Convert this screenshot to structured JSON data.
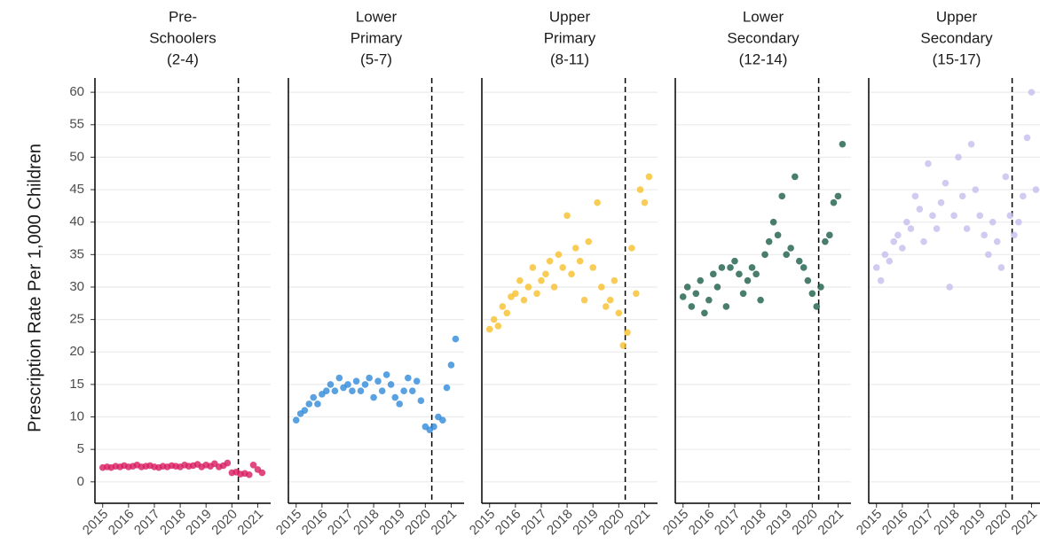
{
  "chart_data": [
    {
      "type": "scatter",
      "title": [
        "Pre-",
        "Schoolers",
        "(2-4)"
      ],
      "ylabel": "Prescription Rate Per 1,000 Children",
      "color": "#d81b60",
      "x": [
        2015,
        2015.17,
        2015.33,
        2015.5,
        2015.67,
        2015.83,
        2016,
        2016.17,
        2016.33,
        2016.5,
        2016.67,
        2016.83,
        2017,
        2017.17,
        2017.33,
        2017.5,
        2017.67,
        2017.83,
        2018,
        2018.17,
        2018.33,
        2018.5,
        2018.67,
        2018.83,
        2019,
        2019.17,
        2019.33,
        2019.5,
        2019.67,
        2019.83,
        2020,
        2020.17,
        2020.33,
        2020.5,
        2020.67,
        2020.83,
        2021,
        2021.17
      ],
      "values": [
        2.2,
        2.3,
        2.2,
        2.4,
        2.3,
        2.5,
        2.3,
        2.4,
        2.6,
        2.3,
        2.4,
        2.5,
        2.3,
        2.2,
        2.4,
        2.3,
        2.5,
        2.4,
        2.3,
        2.6,
        2.4,
        2.5,
        2.7,
        2.3,
        2.6,
        2.4,
        2.8,
        2.3,
        2.5,
        2.9,
        1.4,
        1.5,
        1.2,
        1.3,
        1.1,
        2.6,
        1.9,
        1.4
      ],
      "xlim": [
        2014.7,
        2021.5
      ],
      "ylim": [
        -3.3,
        62.2
      ],
      "xticks": [
        2015,
        2016,
        2017,
        2018,
        2019,
        2020,
        2021
      ],
      "yticks": [
        0,
        5,
        10,
        15,
        20,
        25,
        30,
        35,
        40,
        45,
        50,
        55,
        60
      ],
      "vline": 2020.25,
      "grid": true
    },
    {
      "type": "scatter",
      "title": [
        "Lower",
        "Primary",
        "(5-7)"
      ],
      "color": "#2f8ad8",
      "x": [
        2015,
        2015.17,
        2015.33,
        2015.5,
        2015.67,
        2015.83,
        2016,
        2016.17,
        2016.33,
        2016.5,
        2016.67,
        2016.83,
        2017,
        2017.17,
        2017.33,
        2017.5,
        2017.67,
        2017.83,
        2018,
        2018.17,
        2018.33,
        2018.5,
        2018.67,
        2018.83,
        2019,
        2019.17,
        2019.33,
        2019.5,
        2019.67,
        2019.83,
        2020,
        2020.17,
        2020.33,
        2020.5,
        2020.67,
        2020.83,
        2021,
        2021.17
      ],
      "values": [
        9.5,
        10.5,
        11,
        12,
        13,
        12,
        13.5,
        14,
        15,
        14,
        16,
        14.5,
        15,
        14,
        15.5,
        14,
        15,
        16,
        13,
        15.5,
        14,
        16.5,
        15,
        13,
        12,
        14,
        16,
        14,
        15.5,
        12.5,
        8.5,
        8,
        8.5,
        10,
        9.5,
        14.5,
        18,
        22
      ],
      "xlim": [
        2014.7,
        2021.5
      ],
      "ylim": [
        -3.3,
        62.2
      ],
      "xticks": [
        2015,
        2016,
        2017,
        2018,
        2019,
        2020,
        2021
      ],
      "yticks": [
        0,
        5,
        10,
        15,
        20,
        25,
        30,
        35,
        40,
        45,
        50,
        55,
        60
      ],
      "vline": 2020.25,
      "grid": true
    },
    {
      "type": "scatter",
      "title": [
        "Upper",
        "Primary",
        "(8-11)"
      ],
      "color": "#f7c12a",
      "x": [
        2015,
        2015.17,
        2015.33,
        2015.5,
        2015.67,
        2015.83,
        2016,
        2016.17,
        2016.33,
        2016.5,
        2016.67,
        2016.83,
        2017,
        2017.17,
        2017.33,
        2017.5,
        2017.67,
        2017.83,
        2018,
        2018.17,
        2018.33,
        2018.5,
        2018.67,
        2018.83,
        2019,
        2019.17,
        2019.33,
        2019.5,
        2019.67,
        2019.83,
        2020,
        2020.17,
        2020.33,
        2020.5,
        2020.67,
        2020.83,
        2021,
        2021.17
      ],
      "values": [
        23.5,
        25,
        24,
        27,
        26,
        28.5,
        29,
        31,
        28,
        30,
        33,
        29,
        31,
        32,
        34,
        30,
        35,
        33,
        41,
        32,
        36,
        34,
        28,
        37,
        33,
        43,
        30,
        27,
        28,
        31,
        26,
        21,
        23,
        36,
        29,
        45,
        43,
        47
      ],
      "xlim": [
        2014.7,
        2021.5
      ],
      "ylim": [
        -3.3,
        62.2
      ],
      "xticks": [
        2015,
        2016,
        2017,
        2018,
        2019,
        2020,
        2021
      ],
      "yticks": [
        0,
        5,
        10,
        15,
        20,
        25,
        30,
        35,
        40,
        45,
        50,
        55,
        60
      ],
      "vline": 2020.25,
      "grid": true
    },
    {
      "type": "scatter",
      "title": [
        "Lower",
        "Secondary",
        "(12-14)"
      ],
      "color": "#1b5e4a",
      "x": [
        2015,
        2015.17,
        2015.33,
        2015.5,
        2015.67,
        2015.83,
        2016,
        2016.17,
        2016.33,
        2016.5,
        2016.67,
        2016.83,
        2017,
        2017.17,
        2017.33,
        2017.5,
        2017.67,
        2017.83,
        2018,
        2018.17,
        2018.33,
        2018.5,
        2018.67,
        2018.83,
        2019,
        2019.17,
        2019.33,
        2019.5,
        2019.67,
        2019.83,
        2020,
        2020.17,
        2020.33,
        2020.5,
        2020.67,
        2020.83,
        2021,
        2021.17
      ],
      "values": [
        28.5,
        30,
        27,
        29,
        31,
        26,
        28,
        32,
        30,
        33,
        27,
        33,
        34,
        32,
        29,
        31,
        33,
        32,
        28,
        35,
        37,
        40,
        38,
        44,
        35,
        36,
        47,
        34,
        33,
        31,
        29,
        27,
        30,
        37,
        38,
        43,
        44,
        52
      ],
      "xlim": [
        2014.7,
        2021.5
      ],
      "ylim": [
        -3.3,
        62.2
      ],
      "xticks": [
        2015,
        2016,
        2017,
        2018,
        2019,
        2020,
        2021
      ],
      "yticks": [
        0,
        5,
        10,
        15,
        20,
        25,
        30,
        35,
        40,
        45,
        50,
        55,
        60
      ],
      "vline": 2020.25,
      "grid": true
    },
    {
      "type": "scatter",
      "title": [
        "Upper",
        "Secondary",
        "(15-17)"
      ],
      "color": "#c6bdee",
      "x": [
        2015,
        2015.17,
        2015.33,
        2015.5,
        2015.67,
        2015.83,
        2016,
        2016.17,
        2016.33,
        2016.5,
        2016.67,
        2016.83,
        2017,
        2017.17,
        2017.33,
        2017.5,
        2017.67,
        2017.83,
        2018,
        2018.17,
        2018.33,
        2018.5,
        2018.67,
        2018.83,
        2019,
        2019.17,
        2019.33,
        2019.5,
        2019.67,
        2019.83,
        2020,
        2020.17,
        2020.33,
        2020.5,
        2020.67,
        2020.83,
        2021,
        2021.17
      ],
      "values": [
        33,
        31,
        35,
        34,
        37,
        38,
        36,
        40,
        39,
        44,
        42,
        37,
        49,
        41,
        39,
        43,
        46,
        30,
        41,
        50,
        44,
        39,
        52,
        45,
        41,
        38,
        35,
        40,
        37,
        33,
        47,
        41,
        38,
        40,
        44,
        53,
        60,
        45
      ],
      "xlim": [
        2014.7,
        2021.5
      ],
      "ylim": [
        -3.3,
        62.2
      ],
      "xticks": [
        2015,
        2016,
        2017,
        2018,
        2019,
        2020,
        2021
      ],
      "yticks": [
        0,
        5,
        10,
        15,
        20,
        25,
        30,
        35,
        40,
        45,
        50,
        55,
        60
      ],
      "vline": 2020.25,
      "grid": true
    }
  ]
}
